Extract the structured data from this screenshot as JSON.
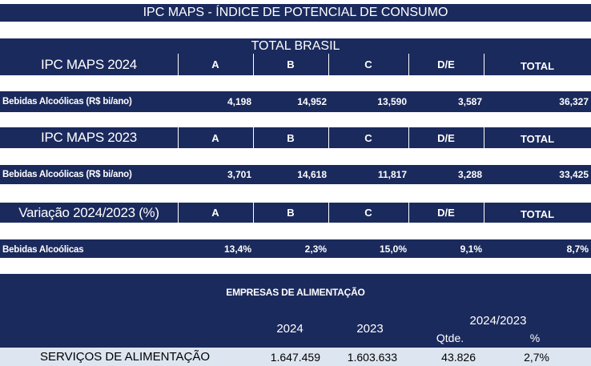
{
  "title": "IPC MAPS - ÍNDICE DE POTENCIAL DE CONSUMO",
  "subtitle": "TOTAL BRASIL",
  "columns": [
    "A",
    "B",
    "C",
    "D/E",
    "TOTAL"
  ],
  "sections": [
    {
      "header": "IPC MAPS 2024",
      "row_label": "Bebidas Alcoólicas (R$ bi/ano)",
      "values": [
        "4,198",
        "14,952",
        "13,590",
        "3,587",
        "36,327"
      ]
    },
    {
      "header": "IPC MAPS 2023",
      "row_label": "Bebidas Alcoólicas (R$ bi/ano)",
      "values": [
        "3,701",
        "14,618",
        "11,817",
        "3,288",
        "33,425"
      ]
    },
    {
      "header": "Variação 2024/2023 (%)",
      "row_label": "Bebidas Alcoólicas",
      "values": [
        "13,4%",
        "2,3%",
        "15,0%",
        "9,1%",
        "8,7%"
      ]
    }
  ],
  "companies": {
    "title": "EMPRESAS DE ALIMENTAÇÃO",
    "col_2024": "2024",
    "col_2023": "2023",
    "col_variation": "2024/2023",
    "col_qty": "Qtde.",
    "col_pct": "%",
    "row": {
      "label": "SERVIÇOS DE ALIMENTAÇÃO",
      "v2024": "1.647.459",
      "v2023": "1.603.633",
      "qty": "43.826",
      "pct": "2,7%"
    }
  }
}
